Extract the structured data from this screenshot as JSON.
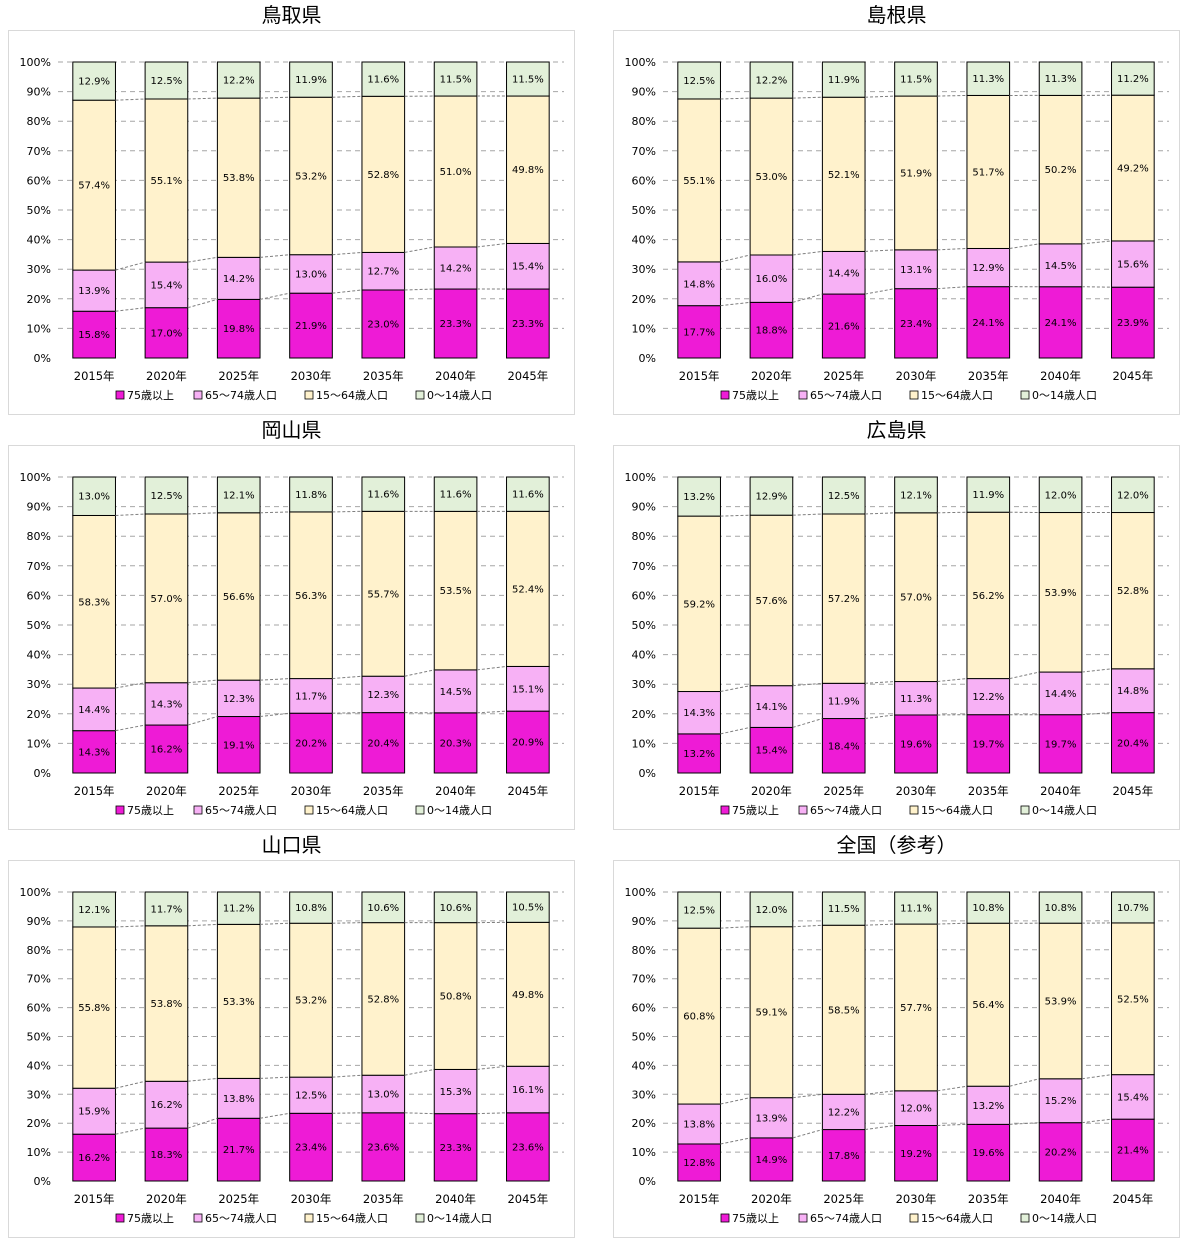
{
  "legend": [
    "75歳以上",
    "65～74歳人口",
    "15～64歳人口",
    "0～14歳人口"
  ],
  "colors": {
    "age75plus": "#ee1bd6",
    "age65to74": "#f7b1f5",
    "age15to64": "#fff2cc",
    "age0to14": "#e2f0d9",
    "gridline": "#a6a6a6",
    "trendline": "#7f7f7f"
  },
  "chart_data": [
    {
      "type": "bar",
      "stacked": "percent",
      "title": "鳥取県",
      "categories": [
        "2015年",
        "2020年",
        "2025年",
        "2030年",
        "2035年",
        "2040年",
        "2045年"
      ],
      "series": [
        {
          "name": "75歳以上",
          "values": [
            15.8,
            17.0,
            19.8,
            21.9,
            23.0,
            23.3,
            23.3
          ]
        },
        {
          "name": "65～74歳人口",
          "values": [
            13.9,
            15.4,
            14.2,
            13.0,
            12.7,
            14.2,
            15.4
          ]
        },
        {
          "name": "15～64歳人口",
          "values": [
            57.4,
            55.1,
            53.8,
            53.2,
            52.8,
            51.0,
            49.8
          ]
        },
        {
          "name": "0～14歳人口",
          "values": [
            12.9,
            12.5,
            12.2,
            11.9,
            11.6,
            11.5,
            11.5
          ]
        }
      ],
      "ylim": [
        0,
        100
      ],
      "yticks": [
        "0%",
        "10%",
        "20%",
        "30%",
        "40%",
        "50%",
        "60%",
        "70%",
        "80%",
        "90%",
        "100%"
      ],
      "grid": true,
      "legend_position": "bottom"
    },
    {
      "type": "bar",
      "stacked": "percent",
      "title": "島根県",
      "categories": [
        "2015年",
        "2020年",
        "2025年",
        "2030年",
        "2035年",
        "2040年",
        "2045年"
      ],
      "series": [
        {
          "name": "75歳以上",
          "values": [
            17.7,
            18.8,
            21.6,
            23.4,
            24.1,
            24.1,
            23.9
          ]
        },
        {
          "name": "65～74歳人口",
          "values": [
            14.8,
            16.0,
            14.4,
            13.1,
            12.9,
            14.5,
            15.6
          ]
        },
        {
          "name": "15～64歳人口",
          "values": [
            55.1,
            53.0,
            52.1,
            51.9,
            51.7,
            50.2,
            49.2
          ]
        },
        {
          "name": "0～14歳人口",
          "values": [
            12.5,
            12.2,
            11.9,
            11.5,
            11.3,
            11.3,
            11.2
          ]
        }
      ],
      "ylim": [
        0,
        100
      ],
      "yticks": [
        "0%",
        "10%",
        "20%",
        "30%",
        "40%",
        "50%",
        "60%",
        "70%",
        "80%",
        "90%",
        "100%"
      ],
      "grid": true,
      "legend_position": "bottom"
    },
    {
      "type": "bar",
      "stacked": "percent",
      "title": "岡山県",
      "categories": [
        "2015年",
        "2020年",
        "2025年",
        "2030年",
        "2035年",
        "2040年",
        "2045年"
      ],
      "series": [
        {
          "name": "75歳以上",
          "values": [
            14.3,
            16.2,
            19.1,
            20.2,
            20.4,
            20.3,
            20.9
          ]
        },
        {
          "name": "65～74歳人口",
          "values": [
            14.4,
            14.3,
            12.3,
            11.7,
            12.3,
            14.5,
            15.1
          ]
        },
        {
          "name": "15～64歳人口",
          "values": [
            58.3,
            57.0,
            56.6,
            56.3,
            55.7,
            53.5,
            52.4
          ]
        },
        {
          "name": "0～14歳人口",
          "values": [
            13.0,
            12.5,
            12.1,
            11.8,
            11.6,
            11.6,
            11.6
          ]
        }
      ],
      "ylim": [
        0,
        100
      ],
      "yticks": [
        "0%",
        "10%",
        "20%",
        "30%",
        "40%",
        "50%",
        "60%",
        "70%",
        "80%",
        "90%",
        "100%"
      ],
      "grid": true,
      "legend_position": "bottom"
    },
    {
      "type": "bar",
      "stacked": "percent",
      "title": "広島県",
      "categories": [
        "2015年",
        "2020年",
        "2025年",
        "2030年",
        "2035年",
        "2040年",
        "2045年"
      ],
      "series": [
        {
          "name": "75歳以上",
          "values": [
            13.2,
            15.4,
            18.4,
            19.6,
            19.7,
            19.7,
            20.4
          ]
        },
        {
          "name": "65～74歳人口",
          "values": [
            14.3,
            14.1,
            11.9,
            11.3,
            12.2,
            14.4,
            14.8
          ]
        },
        {
          "name": "15～64歳人口",
          "values": [
            59.2,
            57.6,
            57.2,
            57.0,
            56.2,
            53.9,
            52.8
          ]
        },
        {
          "name": "0～14歳人口",
          "values": [
            13.2,
            12.9,
            12.5,
            12.1,
            11.9,
            12.0,
            12.0
          ]
        }
      ],
      "ylim": [
        0,
        100
      ],
      "yticks": [
        "0%",
        "10%",
        "20%",
        "30%",
        "40%",
        "50%",
        "60%",
        "70%",
        "80%",
        "90%",
        "100%"
      ],
      "grid": true,
      "legend_position": "bottom"
    },
    {
      "type": "bar",
      "stacked": "percent",
      "title": "山口県",
      "categories": [
        "2015年",
        "2020年",
        "2025年",
        "2030年",
        "2035年",
        "2040年",
        "2045年"
      ],
      "series": [
        {
          "name": "75歳以上",
          "values": [
            16.2,
            18.3,
            21.7,
            23.4,
            23.6,
            23.3,
            23.6
          ]
        },
        {
          "name": "65～74歳人口",
          "values": [
            15.9,
            16.2,
            13.8,
            12.5,
            13.0,
            15.3,
            16.1
          ]
        },
        {
          "name": "15～64歳人口",
          "values": [
            55.8,
            53.8,
            53.3,
            53.2,
            52.8,
            50.8,
            49.8
          ]
        },
        {
          "name": "0～14歳人口",
          "values": [
            12.1,
            11.7,
            11.2,
            10.8,
            10.6,
            10.6,
            10.5
          ]
        }
      ],
      "ylim": [
        0,
        100
      ],
      "yticks": [
        "0%",
        "10%",
        "20%",
        "30%",
        "40%",
        "50%",
        "60%",
        "70%",
        "80%",
        "90%",
        "100%"
      ],
      "grid": true,
      "legend_position": "bottom"
    },
    {
      "type": "bar",
      "stacked": "percent",
      "title": "全国（参考）",
      "categories": [
        "2015年",
        "2020年",
        "2025年",
        "2030年",
        "2035年",
        "2040年",
        "2045年"
      ],
      "series": [
        {
          "name": "75歳以上",
          "values": [
            12.8,
            14.9,
            17.8,
            19.2,
            19.6,
            20.2,
            21.4
          ]
        },
        {
          "name": "65～74歳人口",
          "values": [
            13.8,
            13.9,
            12.2,
            12.0,
            13.2,
            15.2,
            15.4
          ]
        },
        {
          "name": "15～64歳人口",
          "values": [
            60.8,
            59.1,
            58.5,
            57.7,
            56.4,
            53.9,
            52.5
          ]
        },
        {
          "name": "0～14歳人口",
          "values": [
            12.5,
            12.0,
            11.5,
            11.1,
            10.8,
            10.8,
            10.7
          ]
        }
      ],
      "ylim": [
        0,
        100
      ],
      "yticks": [
        "0%",
        "10%",
        "20%",
        "30%",
        "40%",
        "50%",
        "60%",
        "70%",
        "80%",
        "90%",
        "100%"
      ],
      "grid": true,
      "legend_position": "bottom"
    }
  ]
}
